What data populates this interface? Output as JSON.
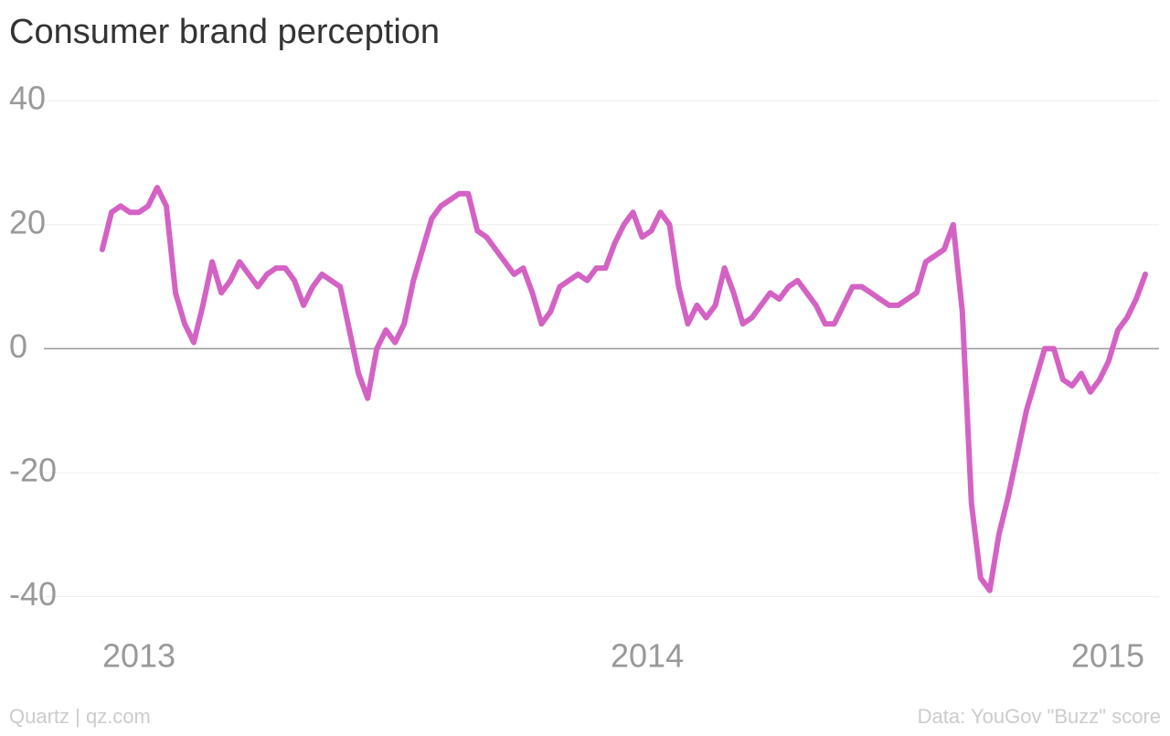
{
  "chart_data": {
    "type": "line",
    "title": "Consumer brand perception",
    "source": "Data: YouGov \"Buzz\" score",
    "credit": "Quartz | qz.com",
    "x": [
      2013,
      2013.018,
      2013.036,
      2013.054,
      2013.072,
      2013.09,
      2013.108,
      2013.126,
      2013.144,
      2013.162,
      2013.18,
      2013.198,
      2013.216,
      2013.234,
      2013.252,
      2013.27,
      2013.288,
      2013.306,
      2013.324,
      2013.342,
      2013.36,
      2013.378,
      2013.396,
      2013.414,
      2013.432,
      2013.45,
      2013.468,
      2013.486,
      2013.504,
      2013.522,
      2013.54,
      2013.558,
      2013.576,
      2013.594,
      2013.612,
      2013.63,
      2013.648,
      2013.666,
      2013.684,
      2013.702,
      2013.72,
      2013.738,
      2013.756,
      2013.774,
      2013.792,
      2013.81,
      2013.828,
      2013.846,
      2013.864,
      2013.882,
      2013.9,
      2013.918,
      2013.936,
      2013.954,
      2013.972,
      2013.99,
      2014.008,
      2014.026,
      2014.044,
      2014.062,
      2014.08,
      2014.098,
      2014.116,
      2014.134,
      2014.152,
      2014.17,
      2014.188,
      2014.206,
      2014.224,
      2014.242,
      2014.26,
      2014.278,
      2014.296,
      2014.314,
      2014.332,
      2014.35,
      2014.368,
      2014.386,
      2014.404,
      2014.422,
      2014.44,
      2014.458,
      2014.476,
      2014.494,
      2014.512,
      2014.53,
      2014.548,
      2014.566,
      2014.584,
      2014.602,
      2014.62,
      2014.638,
      2014.656,
      2014.674,
      2014.692,
      2014.71,
      2014.728,
      2014.746,
      2014.764,
      2014.782,
      2014.8,
      2014.818,
      2014.836,
      2014.854,
      2014.872,
      2014.89,
      2014.908,
      2014.926,
      2014.944,
      2014.962,
      2014.98,
      2014.998,
      2015.016,
      2015.034,
      2015.052
    ],
    "series": [
      {
        "color": "#d462c4",
        "values": [
          16,
          22,
          23,
          22,
          22,
          23,
          26,
          23,
          9,
          4,
          1,
          7,
          14,
          9,
          11,
          14,
          12,
          10,
          12,
          13,
          13,
          11,
          7,
          10,
          12,
          11,
          10,
          3,
          -4,
          -8,
          0,
          3,
          1,
          4,
          11,
          16,
          21,
          23,
          24,
          25,
          25,
          19,
          18,
          16,
          14,
          12,
          13,
          9,
          4,
          6,
          10,
          11,
          12,
          11,
          13,
          13,
          17,
          20,
          22,
          18,
          19,
          22,
          20,
          10,
          4,
          7,
          5,
          7,
          13,
          9,
          4,
          5,
          7,
          9,
          8,
          10,
          11,
          9,
          7,
          4,
          4,
          7,
          10,
          10,
          9,
          8,
          7,
          7,
          8,
          9,
          14,
          15,
          16,
          20,
          6,
          -25,
          -37,
          -39,
          -30,
          -24,
          -17,
          -10,
          -5,
          0,
          0,
          -5,
          -6,
          -4,
          -7,
          -5,
          -2,
          3,
          5,
          8,
          12
        ]
      }
    ],
    "xlim": [
      2012.885,
      2015.079
    ],
    "xticks": [
      2013,
      2014,
      2015
    ],
    "ylim": [
      -47,
      41.5
    ],
    "yticks": [
      -40,
      -20,
      0,
      20,
      40
    ],
    "grid": true
  }
}
